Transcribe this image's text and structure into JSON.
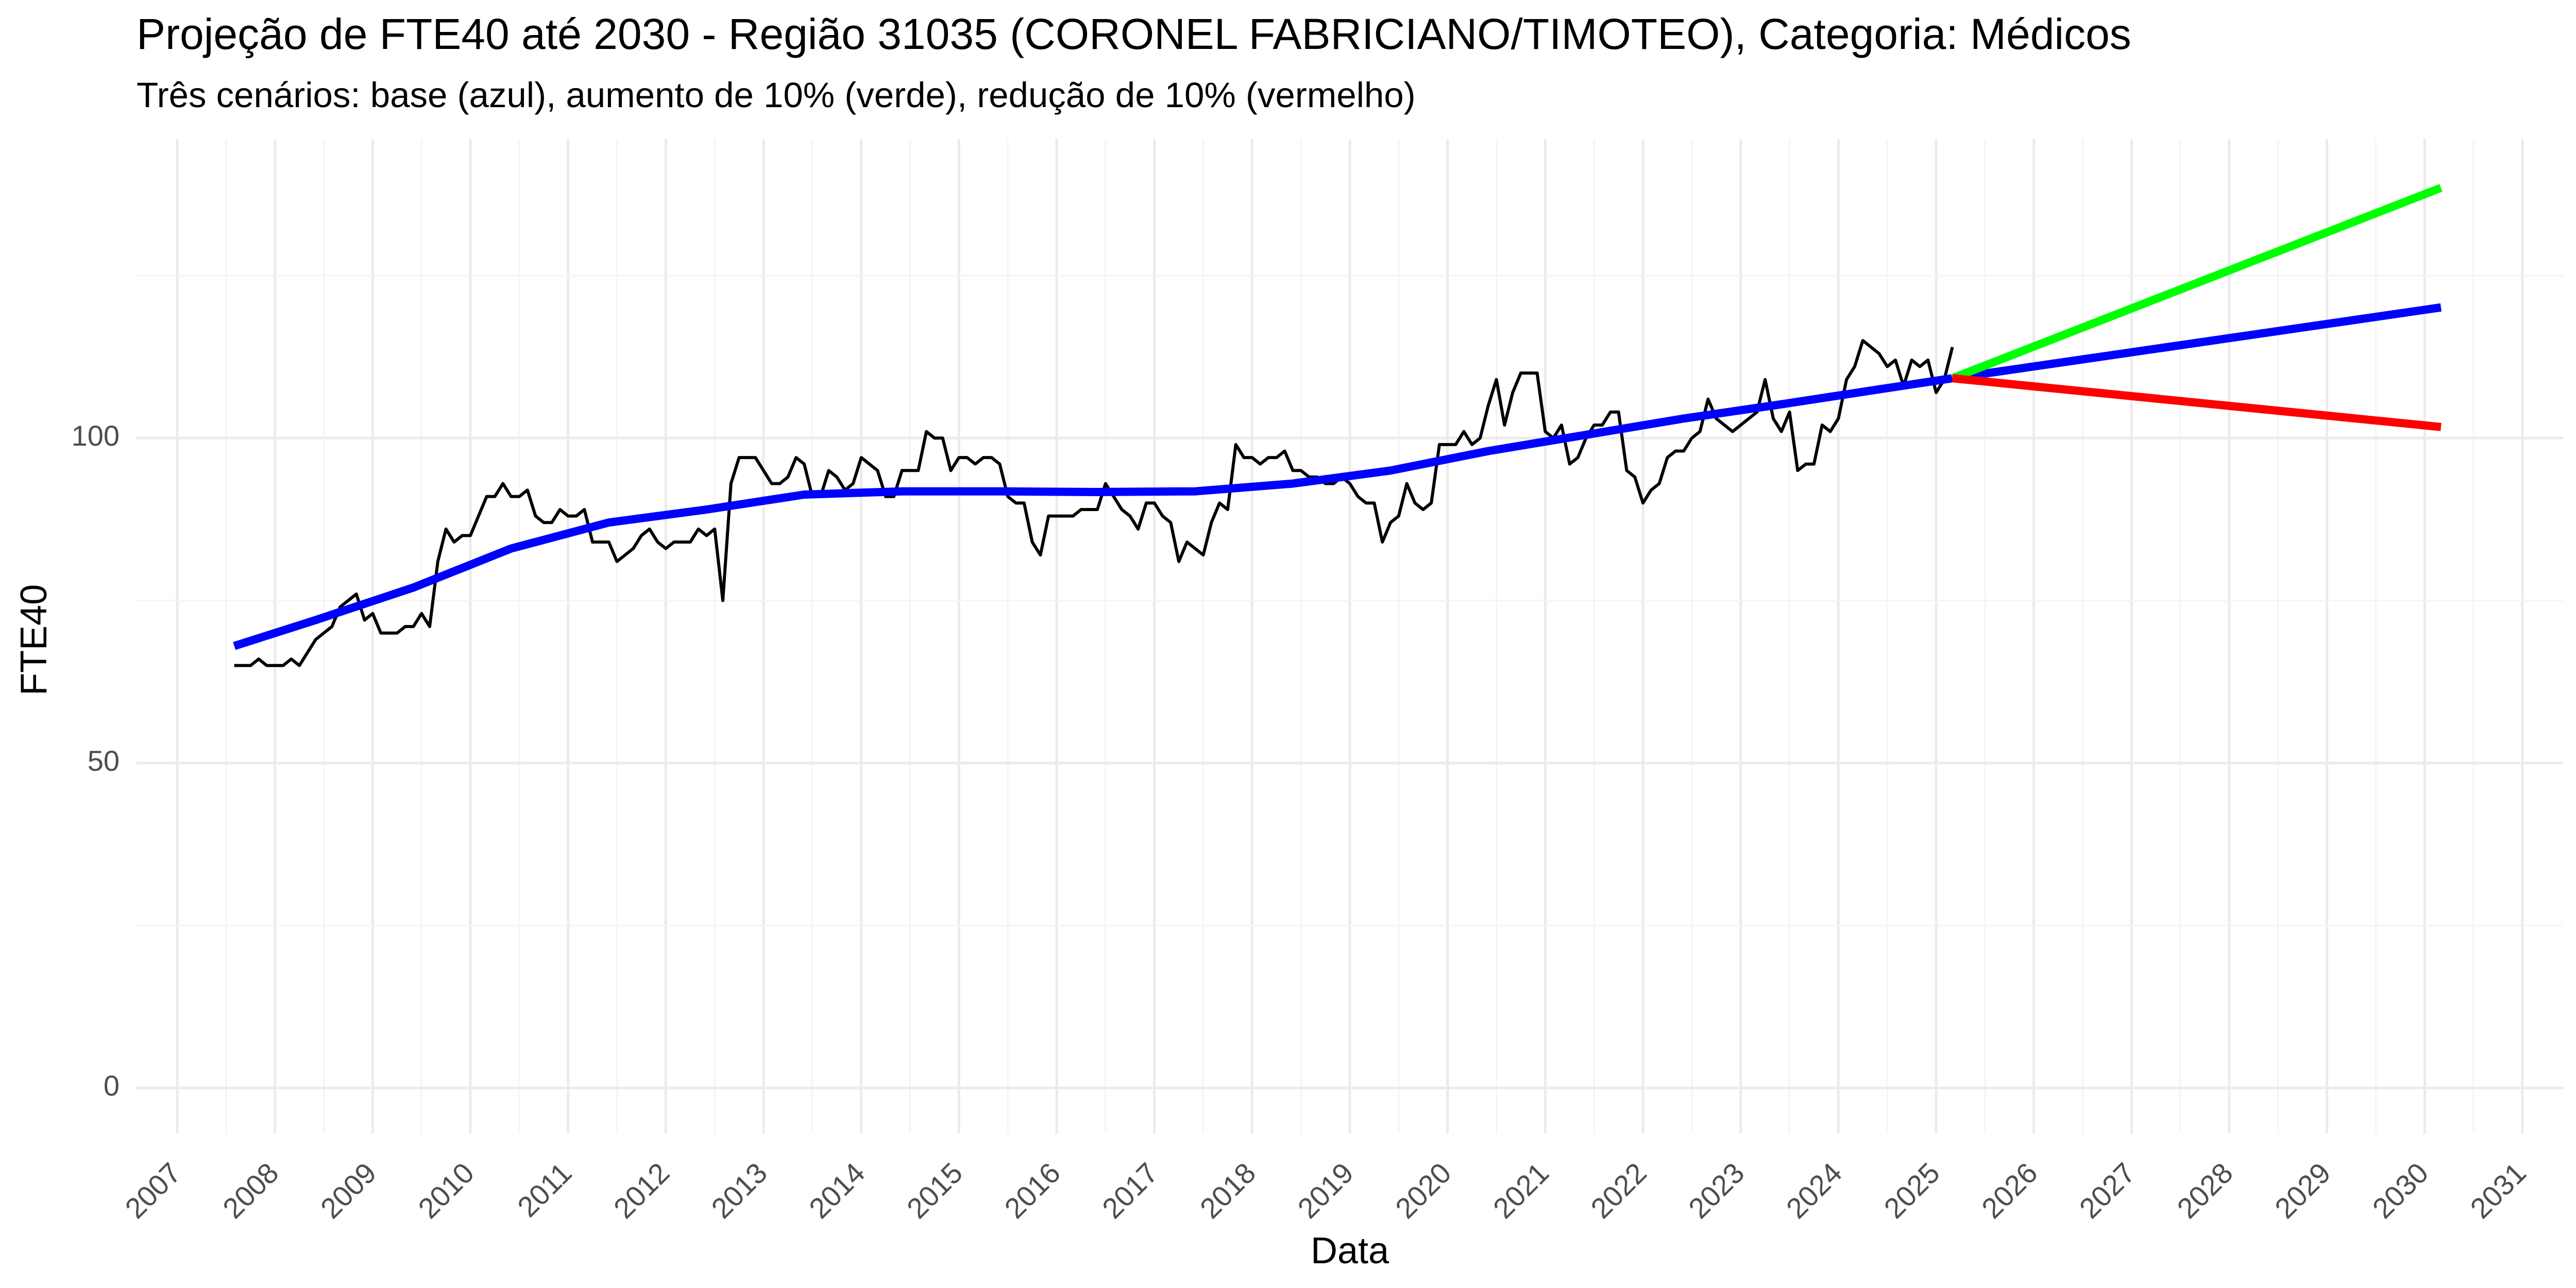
{
  "chart_data": {
    "type": "line",
    "title": "Projeção de FTE40 até 2030 - Região 31035 (CORONEL FABRICIANO/TIMOTEO), Categoria: Médicos",
    "subtitle": "Três cenários: base (azul), aumento de 10% (verde), redução de 10% (vermelho)",
    "xlabel": "Data",
    "ylabel": "FTE40",
    "x_ticks": [
      "2007",
      "2008",
      "2009",
      "2010",
      "2011",
      "2012",
      "2013",
      "2014",
      "2015",
      "2016",
      "2017",
      "2018",
      "2019",
      "2020",
      "2021",
      "2022",
      "2023",
      "2024",
      "2025",
      "2026",
      "2027",
      "2028",
      "2029",
      "2030",
      "2031"
    ],
    "y_ticks": [
      0,
      50,
      100
    ],
    "xlim": [
      "2006-08-01",
      "2031-06-01"
    ],
    "ylim": [
      -7,
      146
    ],
    "grid": true,
    "legend": "none",
    "series": [
      {
        "color": "#000000",
        "style": "observed",
        "points": [
          [
            "2007-08",
            65
          ],
          [
            "2007-09",
            65
          ],
          [
            "2007-10",
            65
          ],
          [
            "2007-11",
            66
          ],
          [
            "2007-12",
            65
          ],
          [
            "2008-01",
            65
          ],
          [
            "2008-02",
            65
          ],
          [
            "2008-03",
            66
          ],
          [
            "2008-04",
            65
          ],
          [
            "2008-05",
            67
          ],
          [
            "2008-06",
            69
          ],
          [
            "2008-07",
            70
          ],
          [
            "2008-08",
            71
          ],
          [
            "2008-09",
            74
          ],
          [
            "2008-10",
            75
          ],
          [
            "2008-11",
            76
          ],
          [
            "2008-12",
            72
          ],
          [
            "2009-01",
            73
          ],
          [
            "2009-02",
            70
          ],
          [
            "2009-03",
            70
          ],
          [
            "2009-04",
            70
          ],
          [
            "2009-05",
            71
          ],
          [
            "2009-06",
            71
          ],
          [
            "2009-07",
            73
          ],
          [
            "2009-08",
            71
          ],
          [
            "2009-09",
            81
          ],
          [
            "2009-10",
            86
          ],
          [
            "2009-11",
            84
          ],
          [
            "2009-12",
            85
          ],
          [
            "2010-01",
            85
          ],
          [
            "2010-02",
            88
          ],
          [
            "2010-03",
            91
          ],
          [
            "2010-04",
            91
          ],
          [
            "2010-05",
            93
          ],
          [
            "2010-06",
            91
          ],
          [
            "2010-07",
            91
          ],
          [
            "2010-08",
            92
          ],
          [
            "2010-09",
            88
          ],
          [
            "2010-10",
            87
          ],
          [
            "2010-11",
            87
          ],
          [
            "2010-12",
            89
          ],
          [
            "2011-01",
            88
          ],
          [
            "2011-02",
            88
          ],
          [
            "2011-03",
            89
          ],
          [
            "2011-04",
            84
          ],
          [
            "2011-05",
            84
          ],
          [
            "2011-06",
            84
          ],
          [
            "2011-07",
            81
          ],
          [
            "2011-08",
            82
          ],
          [
            "2011-09",
            83
          ],
          [
            "2011-10",
            85
          ],
          [
            "2011-11",
            86
          ],
          [
            "2011-12",
            84
          ],
          [
            "2012-01",
            83
          ],
          [
            "2012-02",
            84
          ],
          [
            "2012-03",
            84
          ],
          [
            "2012-04",
            84
          ],
          [
            "2012-05",
            86
          ],
          [
            "2012-06",
            85
          ],
          [
            "2012-07",
            86
          ],
          [
            "2012-08",
            75
          ],
          [
            "2012-09",
            93
          ],
          [
            "2012-10",
            97
          ],
          [
            "2012-11",
            97
          ],
          [
            "2012-12",
            97
          ],
          [
            "2013-01",
            95
          ],
          [
            "2013-02",
            93
          ],
          [
            "2013-03",
            93
          ],
          [
            "2013-04",
            94
          ],
          [
            "2013-05",
            97
          ],
          [
            "2013-06",
            96
          ],
          [
            "2013-07",
            91
          ],
          [
            "2013-08",
            91
          ],
          [
            "2013-09",
            95
          ],
          [
            "2013-10",
            94
          ],
          [
            "2013-11",
            92
          ],
          [
            "2013-12",
            93
          ],
          [
            "2014-01",
            97
          ],
          [
            "2014-02",
            96
          ],
          [
            "2014-03",
            95
          ],
          [
            "2014-04",
            91
          ],
          [
            "2014-05",
            91
          ],
          [
            "2014-06",
            95
          ],
          [
            "2014-07",
            95
          ],
          [
            "2014-08",
            95
          ],
          [
            "2014-09",
            101
          ],
          [
            "2014-10",
            100
          ],
          [
            "2014-11",
            100
          ],
          [
            "2014-12",
            95
          ],
          [
            "2015-01",
            97
          ],
          [
            "2015-02",
            97
          ],
          [
            "2015-03",
            96
          ],
          [
            "2015-04",
            97
          ],
          [
            "2015-05",
            97
          ],
          [
            "2015-06",
            96
          ],
          [
            "2015-07",
            91
          ],
          [
            "2015-08",
            90
          ],
          [
            "2015-09",
            90
          ],
          [
            "2015-10",
            84
          ],
          [
            "2015-11",
            82
          ],
          [
            "2015-12",
            88
          ],
          [
            "2016-01",
            88
          ],
          [
            "2016-02",
            88
          ],
          [
            "2016-03",
            88
          ],
          [
            "2016-04",
            89
          ],
          [
            "2016-05",
            89
          ],
          [
            "2016-06",
            89
          ],
          [
            "2016-07",
            93
          ],
          [
            "2016-08",
            91
          ],
          [
            "2016-09",
            89
          ],
          [
            "2016-10",
            88
          ],
          [
            "2016-11",
            86
          ],
          [
            "2016-12",
            90
          ],
          [
            "2017-01",
            90
          ],
          [
            "2017-02",
            88
          ],
          [
            "2017-03",
            87
          ],
          [
            "2017-04",
            81
          ],
          [
            "2017-05",
            84
          ],
          [
            "2017-06",
            83
          ],
          [
            "2017-07",
            82
          ],
          [
            "2017-08",
            87
          ],
          [
            "2017-09",
            90
          ],
          [
            "2017-10",
            89
          ],
          [
            "2017-11",
            99
          ],
          [
            "2017-12",
            97
          ],
          [
            "2018-01",
            97
          ],
          [
            "2018-02",
            96
          ],
          [
            "2018-03",
            97
          ],
          [
            "2018-04",
            97
          ],
          [
            "2018-05",
            98
          ],
          [
            "2018-06",
            95
          ],
          [
            "2018-07",
            95
          ],
          [
            "2018-08",
            94
          ],
          [
            "2018-09",
            94
          ],
          [
            "2018-10",
            93
          ],
          [
            "2018-11",
            93
          ],
          [
            "2018-12",
            94
          ],
          [
            "2019-01",
            93
          ],
          [
            "2019-02",
            91
          ],
          [
            "2019-03",
            90
          ],
          [
            "2019-04",
            90
          ],
          [
            "2019-05",
            84
          ],
          [
            "2019-06",
            87
          ],
          [
            "2019-07",
            88
          ],
          [
            "2019-08",
            93
          ],
          [
            "2019-09",
            90
          ],
          [
            "2019-10",
            89
          ],
          [
            "2019-11",
            90
          ],
          [
            "2019-12",
            99
          ],
          [
            "2020-01",
            99
          ],
          [
            "2020-02",
            99
          ],
          [
            "2020-03",
            101
          ],
          [
            "2020-04",
            99
          ],
          [
            "2020-05",
            100
          ],
          [
            "2020-06",
            105
          ],
          [
            "2020-07",
            109
          ],
          [
            "2020-08",
            102
          ],
          [
            "2020-09",
            107
          ],
          [
            "2020-10",
            110
          ],
          [
            "2020-11",
            110
          ],
          [
            "2020-12",
            110
          ],
          [
            "2021-01",
            101
          ],
          [
            "2021-02",
            100
          ],
          [
            "2021-03",
            102
          ],
          [
            "2021-04",
            96
          ],
          [
            "2021-05",
            97
          ],
          [
            "2021-06",
            100
          ],
          [
            "2021-07",
            102
          ],
          [
            "2021-08",
            102
          ],
          [
            "2021-09",
            104
          ],
          [
            "2021-10",
            104
          ],
          [
            "2021-11",
            95
          ],
          [
            "2021-12",
            94
          ],
          [
            "2022-01",
            90
          ],
          [
            "2022-02",
            92
          ],
          [
            "2022-03",
            93
          ],
          [
            "2022-04",
            97
          ],
          [
            "2022-05",
            98
          ],
          [
            "2022-06",
            98
          ],
          [
            "2022-07",
            100
          ],
          [
            "2022-08",
            101
          ],
          [
            "2022-09",
            106
          ],
          [
            "2022-10",
            103
          ],
          [
            "2022-11",
            102
          ],
          [
            "2022-12",
            101
          ],
          [
            "2023-01",
            102
          ],
          [
            "2023-02",
            103
          ],
          [
            "2023-03",
            104
          ],
          [
            "2023-04",
            109
          ],
          [
            "2023-05",
            103
          ],
          [
            "2023-06",
            101
          ],
          [
            "2023-07",
            104
          ],
          [
            "2023-08",
            95
          ],
          [
            "2023-09",
            96
          ],
          [
            "2023-10",
            96
          ],
          [
            "2023-11",
            102
          ],
          [
            "2023-12",
            101
          ],
          [
            "2024-01",
            103
          ],
          [
            "2024-02",
            109
          ],
          [
            "2024-03",
            111
          ],
          [
            "2024-04",
            115
          ],
          [
            "2024-05",
            114
          ],
          [
            "2024-06",
            113
          ],
          [
            "2024-07",
            111
          ],
          [
            "2024-08",
            112
          ],
          [
            "2024-09",
            108
          ],
          [
            "2024-10",
            112
          ],
          [
            "2024-11",
            111
          ],
          [
            "2024-12",
            112
          ],
          [
            "2025-01",
            107
          ],
          [
            "2025-02",
            109
          ],
          [
            "2025-03",
            114
          ]
        ]
      },
      {
        "color": "#0000ff",
        "style": "trend",
        "points": [
          [
            "2007-08",
            68
          ],
          [
            "2008-06",
            72
          ],
          [
            "2009-06",
            77
          ],
          [
            "2010-06",
            83
          ],
          [
            "2011-06",
            87
          ],
          [
            "2012-06",
            89
          ],
          [
            "2013-06",
            91.3
          ],
          [
            "2014-06",
            91.8
          ],
          [
            "2015-06",
            91.8
          ],
          [
            "2016-06",
            91.7
          ],
          [
            "2017-06",
            91.8
          ],
          [
            "2018-06",
            93
          ],
          [
            "2019-06",
            95
          ],
          [
            "2020-06",
            98
          ],
          [
            "2021-06",
            100.5
          ],
          [
            "2022-06",
            103
          ],
          [
            "2023-06",
            105.2
          ],
          [
            "2024-06",
            107.5
          ],
          [
            "2025-03",
            109.2
          ]
        ]
      },
      {
        "color": "#0000ff",
        "style": "projection",
        "points": [
          [
            "2025-03",
            109.2
          ],
          [
            "2030-03",
            120.1
          ]
        ]
      },
      {
        "color": "#00ff00",
        "style": "projection",
        "points": [
          [
            "2025-03",
            109.2
          ],
          [
            "2030-03",
            138.5
          ]
        ]
      },
      {
        "color": "#ff0000",
        "style": "projection",
        "points": [
          [
            "2025-03",
            109.2
          ],
          [
            "2030-03",
            101.7
          ]
        ]
      }
    ]
  }
}
